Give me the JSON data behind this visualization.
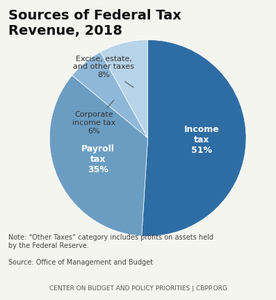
{
  "title": "Sources of Federal Tax\nRevenue, 2018",
  "slices": [
    51,
    35,
    6,
    8
  ],
  "labels_inside": [
    "Income\ntax\n51%",
    "Payroll\ntax\n35%",
    "",
    ""
  ],
  "labels_outside": [
    "",
    "",
    "Corporate\nincome tax\n6%",
    "Excise, estate,\nand other taxes\n8%"
  ],
  "colors": [
    "#2E6DA4",
    "#6B9DC2",
    "#8FB8D8",
    "#B8D4E8"
  ],
  "startangle": 90,
  "note": "Note: “Other Taxes” category includes profits on assets held\nby the Federal Reserve.",
  "source": "Source: Office of Management and Budget",
  "footer": "CENTER ON BUDGET AND POLICY PRIORITIES | CBPP.ORG",
  "background_color": "#f5f5f0",
  "footer_bg": "#e0e0d8"
}
